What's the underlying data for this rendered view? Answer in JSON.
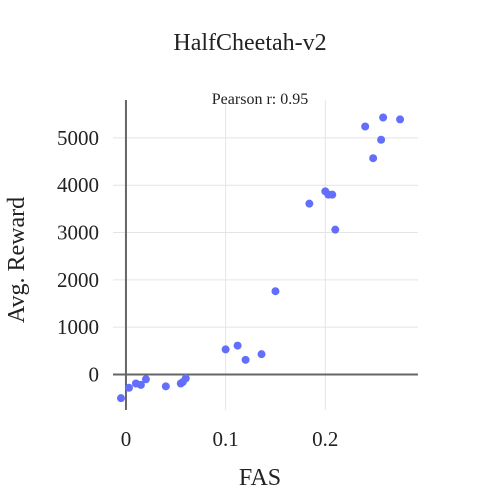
{
  "chart_data": {
    "type": "scatter",
    "title": "HalfCheetah-v2",
    "xlabel": "FAS",
    "ylabel": "Avg. Reward",
    "annotation": "Pearson r: 0.95",
    "xlim": [
      -0.013,
      0.293
    ],
    "ylim": [
      -750,
      5800
    ],
    "xticks": [
      0,
      0.1,
      0.2
    ],
    "xtick_labels": [
      "0",
      "0.1",
      "0.2"
    ],
    "yticks": [
      0,
      1000,
      2000,
      3000,
      4000,
      5000
    ],
    "ytick_labels": [
      "0",
      "1000",
      "2000",
      "3000",
      "4000",
      "5000"
    ],
    "grid": true,
    "legend": false,
    "marker_color": "#636efa",
    "series": [
      {
        "x": [
          -0.005,
          0.003,
          0.01,
          0.015,
          0.02,
          0.04,
          0.055,
          0.057,
          0.06,
          0.1,
          0.112,
          0.12,
          0.136,
          0.15,
          0.184,
          0.2,
          0.203,
          0.207,
          0.21,
          0.24,
          0.248,
          0.256,
          0.258,
          0.275
        ],
        "y": [
          -500,
          -280,
          -190,
          -220,
          -100,
          -250,
          -190,
          -160,
          -80,
          530,
          610,
          310,
          430,
          1760,
          3610,
          3870,
          3800,
          3800,
          3060,
          5240,
          4570,
          4960,
          5430,
          5390
        ]
      }
    ]
  }
}
